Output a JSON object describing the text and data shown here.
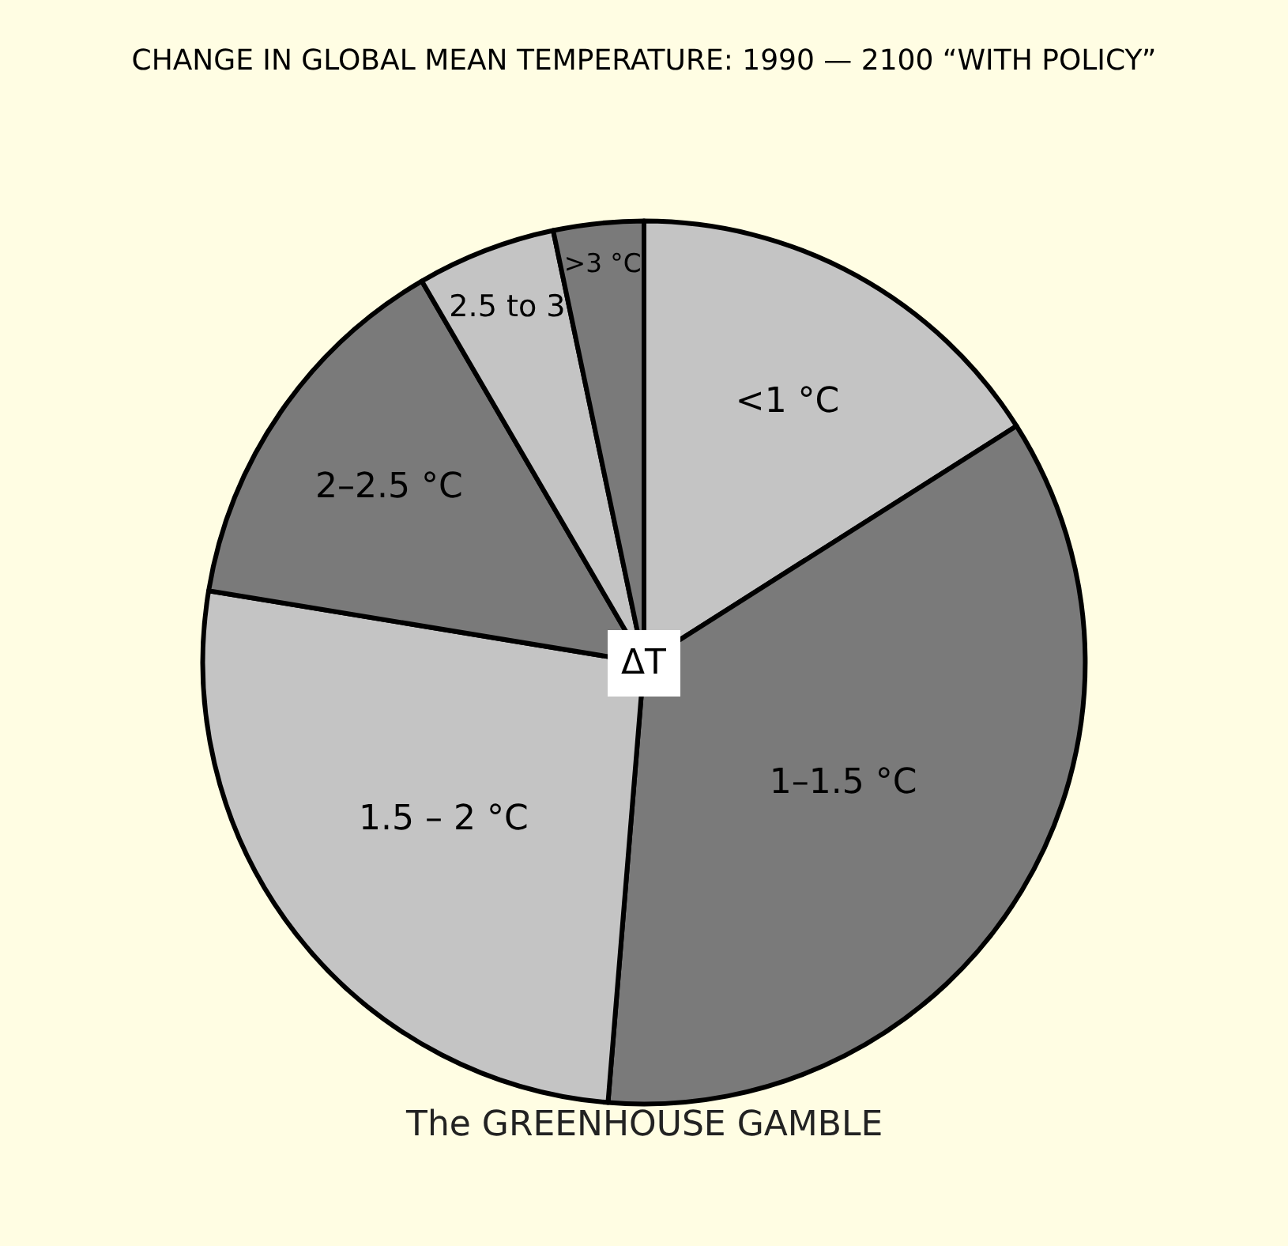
{
  "chart_data": {
    "type": "pie",
    "title": "CHANGE IN GLOBAL MEAN TEMPERATURE: 1990 — 2100 “WITH POLICY”",
    "categories": [
      "<1 °C",
      "1–1.5 °C",
      "1.5 – 2 °C",
      "2–2.5 °C",
      "2.5 to 3",
      ">3 °C"
    ],
    "values": [
      16.0,
      35.3,
      26.3,
      14.0,
      5.1,
      3.3
    ],
    "colors": [
      "#c4c4c4",
      "#7a7a7a",
      "#c4c4c4",
      "#7a7a7a",
      "#c4c4c4",
      "#7a7a7a"
    ],
    "annotations": [
      "ΔT",
      "The GREENHOUSE GAMBLE"
    ],
    "legend": false
  }
}
